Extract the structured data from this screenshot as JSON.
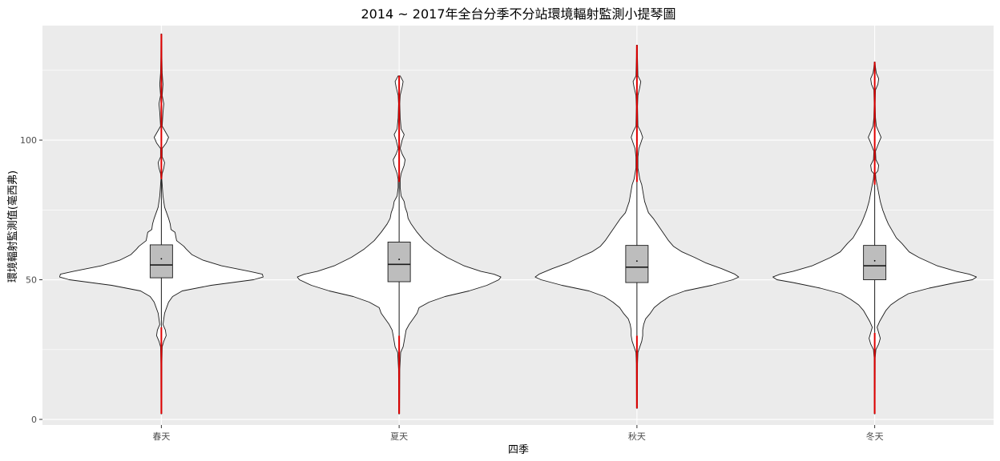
{
  "chart_data": {
    "type": "violin",
    "title": "2014 ~ 2017年全台分季不分站環境輻射監測小提琴圖",
    "xlabel": "四季",
    "ylabel": "環境輻射監測值(毫西弗)",
    "categories": [
      "春天",
      "夏天",
      "秋天",
      "冬天"
    ],
    "ylim": [
      -2,
      141
    ],
    "yticks": [
      0,
      50,
      100
    ],
    "grid": true,
    "colors": {
      "panel": "#ebebeb",
      "grid": "#ffffff",
      "violin_fill": "#ffffff",
      "box_fill": "#bdbdbd",
      "outliers": "#e00000"
    },
    "boxes": [
      {
        "category": "春天",
        "q1": 50.7,
        "median": 55.3,
        "q3": 62.5,
        "whisker_low": 33,
        "whisker_high": 86,
        "mean": 57.5,
        "min": 2,
        "max": 138
      },
      {
        "category": "夏天",
        "q1": 49.3,
        "median": 55.5,
        "q3": 63.5,
        "whisker_low": 30,
        "whisker_high": 85,
        "mean": 57.3,
        "min": 2,
        "max": 123
      },
      {
        "category": "秋天",
        "q1": 49.0,
        "median": 54.5,
        "q3": 62.3,
        "whisker_low": 30,
        "whisker_high": 85,
        "mean": 56.7,
        "min": 4,
        "max": 134
      },
      {
        "category": "冬天",
        "q1": 50.0,
        "median": 55.0,
        "q3": 62.3,
        "whisker_low": 31,
        "whisker_high": 84,
        "mean": 56.8,
        "min": 2,
        "max": 128
      }
    ],
    "violins": [
      {
        "category": "春天",
        "profile": [
          [
            2,
            0.4
          ],
          [
            20,
            0.6
          ],
          [
            26,
            1
          ],
          [
            28,
            3
          ],
          [
            30,
            6
          ],
          [
            32,
            5
          ],
          [
            34,
            2
          ],
          [
            38,
            4
          ],
          [
            42,
            9
          ],
          [
            44,
            14
          ],
          [
            46,
            26
          ],
          [
            48,
            62
          ],
          [
            50,
            115
          ],
          [
            51,
            127
          ],
          [
            52,
            126
          ],
          [
            53,
            110
          ],
          [
            55,
            75
          ],
          [
            57,
            52
          ],
          [
            59,
            38
          ],
          [
            61,
            31
          ],
          [
            62,
            28
          ],
          [
            64,
            19
          ],
          [
            67,
            17
          ],
          [
            68,
            12
          ],
          [
            70,
            11
          ],
          [
            72,
            9
          ],
          [
            76,
            4
          ],
          [
            80,
            2
          ],
          [
            84,
            1
          ],
          [
            86,
            0.5
          ],
          [
            88,
            1
          ],
          [
            90,
            3
          ],
          [
            92,
            4
          ],
          [
            94,
            1
          ],
          [
            97,
            1
          ],
          [
            99,
            6
          ],
          [
            101,
            9
          ],
          [
            103,
            5
          ],
          [
            105,
            1
          ],
          [
            110,
            2
          ],
          [
            113,
            3
          ],
          [
            116,
            1
          ],
          [
            120,
            2
          ],
          [
            124,
            1
          ],
          [
            130,
            0.6
          ],
          [
            138,
            0.4
          ]
        ]
      },
      {
        "category": "夏天",
        "profile": [
          [
            2,
            0.4
          ],
          [
            18,
            0.6
          ],
          [
            24,
            1.5
          ],
          [
            26,
            4
          ],
          [
            28,
            5
          ],
          [
            30,
            6
          ],
          [
            32,
            7
          ],
          [
            34,
            10
          ],
          [
            36,
            14
          ],
          [
            38,
            18
          ],
          [
            40,
            20
          ],
          [
            42,
            30
          ],
          [
            44,
            46
          ],
          [
            46,
            70
          ],
          [
            48,
            88
          ],
          [
            50,
            100
          ],
          [
            51,
            102
          ],
          [
            52,
            95
          ],
          [
            53,
            82
          ],
          [
            55,
            65
          ],
          [
            58,
            48
          ],
          [
            61,
            35
          ],
          [
            64,
            25
          ],
          [
            67,
            18
          ],
          [
            70,
            12
          ],
          [
            72,
            9
          ],
          [
            74,
            8
          ],
          [
            76,
            6
          ],
          [
            78,
            5
          ],
          [
            80,
            2
          ],
          [
            83,
            1
          ],
          [
            86,
            1
          ],
          [
            88,
            2
          ],
          [
            91,
            5
          ],
          [
            93,
            6
          ],
          [
            95,
            3
          ],
          [
            97,
            1
          ],
          [
            100,
            3
          ],
          [
            102,
            5
          ],
          [
            104,
            2
          ],
          [
            108,
            1
          ],
          [
            113,
            0.6
          ],
          [
            116,
            1
          ],
          [
            119,
            3
          ],
          [
            121,
            4
          ],
          [
            123,
            1
          ]
        ]
      },
      {
        "category": "秋天",
        "profile": [
          [
            4,
            0.4
          ],
          [
            20,
            0.6
          ],
          [
            24,
            1
          ],
          [
            26,
            3
          ],
          [
            28,
            5
          ],
          [
            30,
            6
          ],
          [
            32,
            6
          ],
          [
            34,
            7
          ],
          [
            36,
            9
          ],
          [
            38,
            14
          ],
          [
            40,
            18
          ],
          [
            42,
            25
          ],
          [
            44,
            34
          ],
          [
            46,
            50
          ],
          [
            48,
            78
          ],
          [
            50,
            100
          ],
          [
            51,
            106
          ],
          [
            52,
            102
          ],
          [
            54,
            88
          ],
          [
            56,
            72
          ],
          [
            58,
            60
          ],
          [
            60,
            47
          ],
          [
            62,
            38
          ],
          [
            64,
            33
          ],
          [
            66,
            29
          ],
          [
            68,
            25
          ],
          [
            70,
            21
          ],
          [
            72,
            17
          ],
          [
            74,
            12
          ],
          [
            76,
            10
          ],
          [
            78,
            8
          ],
          [
            80,
            7
          ],
          [
            82,
            6
          ],
          [
            84,
            5
          ],
          [
            86,
            3
          ],
          [
            88,
            2
          ],
          [
            90,
            1
          ],
          [
            94,
            1
          ],
          [
            97,
            2
          ],
          [
            99,
            4
          ],
          [
            101,
            6
          ],
          [
            103,
            4
          ],
          [
            105,
            1
          ],
          [
            112,
            0.6
          ],
          [
            116,
            1
          ],
          [
            119,
            3
          ],
          [
            121,
            4
          ],
          [
            123,
            1
          ],
          [
            130,
            0.5
          ],
          [
            134,
            0.4
          ]
        ]
      },
      {
        "category": "冬天",
        "profile": [
          [
            2,
            0.4
          ],
          [
            22,
            0.6
          ],
          [
            25,
            1.5
          ],
          [
            27,
            5
          ],
          [
            29,
            7
          ],
          [
            31,
            5
          ],
          [
            33,
            3
          ],
          [
            35,
            6
          ],
          [
            37,
            10
          ],
          [
            39,
            14
          ],
          [
            41,
            20
          ],
          [
            43,
            30
          ],
          [
            45,
            42
          ],
          [
            47,
            68
          ],
          [
            49,
            102
          ],
          [
            50,
            122
          ],
          [
            51,
            127
          ],
          [
            52,
            118
          ],
          [
            53,
            102
          ],
          [
            55,
            78
          ],
          [
            58,
            55
          ],
          [
            60,
            43
          ],
          [
            63,
            34
          ],
          [
            65,
            27
          ],
          [
            67,
            23
          ],
          [
            70,
            17
          ],
          [
            72,
            14
          ],
          [
            75,
            10
          ],
          [
            78,
            7
          ],
          [
            81,
            5
          ],
          [
            84,
            3
          ],
          [
            86,
            1.5
          ],
          [
            88,
            1
          ],
          [
            89,
            4
          ],
          [
            91,
            5
          ],
          [
            93,
            1.5
          ],
          [
            96,
            1
          ],
          [
            99,
            5
          ],
          [
            101,
            8
          ],
          [
            103,
            5
          ],
          [
            105,
            2
          ],
          [
            108,
            1
          ],
          [
            113,
            0.6
          ],
          [
            118,
            1
          ],
          [
            120,
            4
          ],
          [
            122,
            5
          ],
          [
            124,
            2
          ],
          [
            126,
            1
          ],
          [
            128,
            0.4
          ]
        ]
      }
    ]
  }
}
